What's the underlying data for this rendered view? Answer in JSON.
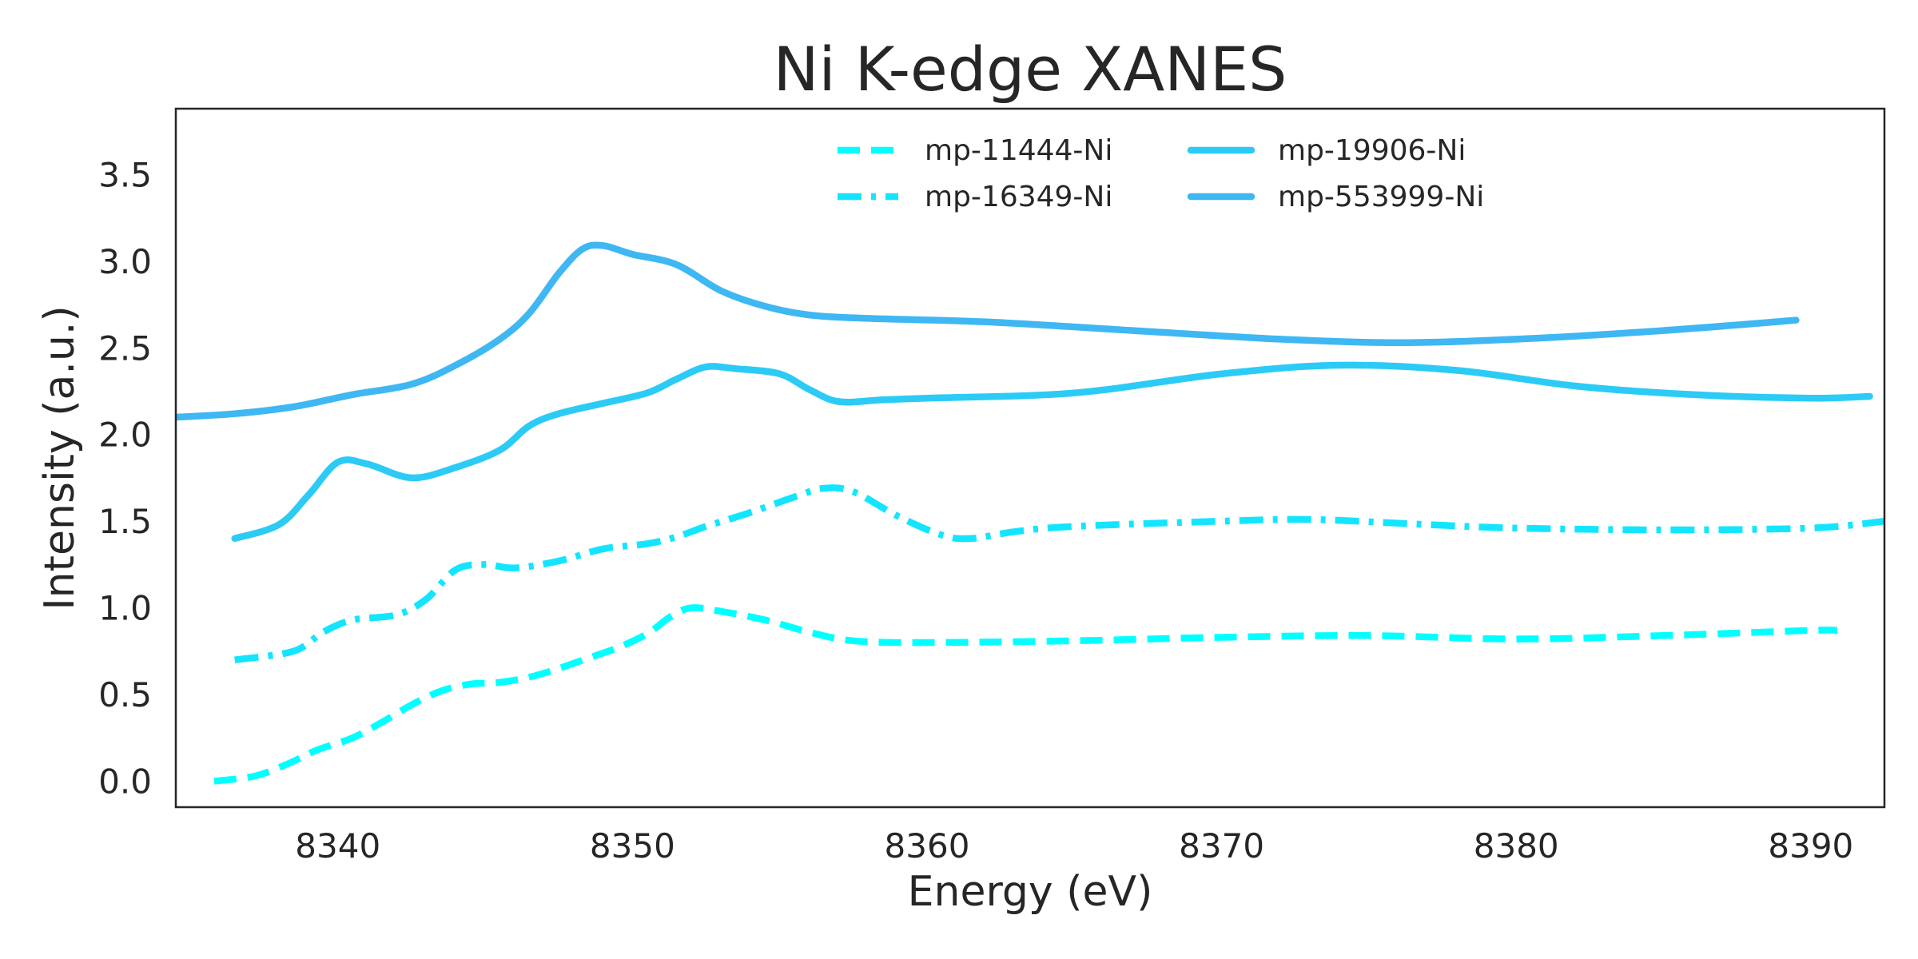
{
  "chart_data": {
    "type": "line",
    "title": "Ni K-edge XANES",
    "xlabel": "Energy (eV)",
    "ylabel": "Intensity (a.u.)",
    "xlim": [
      8334.5,
      8392.5
    ],
    "ylim": [
      -0.15,
      3.88
    ],
    "xticks": [
      "8340",
      "8350",
      "8360",
      "8370",
      "8380",
      "8390"
    ],
    "yticks": [
      "0.0",
      "0.5",
      "1.0",
      "1.5",
      "2.0",
      "2.5",
      "3.0",
      "3.5"
    ],
    "grid": false,
    "legend_position": "top-right",
    "series": [
      {
        "name": "mp-11444-Ni",
        "color": "#00ffff",
        "dash": "dashed",
        "x": [
          8335.8,
          8337.2,
          8338.3,
          8339.3,
          8340.5,
          8341.5,
          8342.5,
          8343.5,
          8344.5,
          8345.5,
          8346.5,
          8347.5,
          8348.5,
          8349.5,
          8350.5,
          8351.3,
          8352.0,
          8353.0,
          8354.5,
          8356.0,
          8357.5,
          8360.0,
          8365.0,
          8370.0,
          8375.0,
          8380.0,
          8385.0,
          8390.0,
          8390.9
        ],
        "y": [
          0.0,
          0.03,
          0.1,
          0.18,
          0.25,
          0.34,
          0.44,
          0.52,
          0.56,
          0.57,
          0.6,
          0.65,
          0.71,
          0.77,
          0.85,
          0.95,
          1.0,
          0.98,
          0.93,
          0.86,
          0.81,
          0.8,
          0.81,
          0.83,
          0.84,
          0.82,
          0.84,
          0.87,
          0.87
        ]
      },
      {
        "name": "mp-16349-Ni",
        "color": "#14e5ff",
        "dash": "dashdot",
        "x": [
          8336.5,
          8338.5,
          8339.5,
          8340.5,
          8342.0,
          8343.0,
          8344.0,
          8345.0,
          8346.0,
          8347.5,
          8349.0,
          8350.5,
          8351.5,
          8352.5,
          8354.0,
          8355.5,
          8356.5,
          8357.5,
          8359.0,
          8360.5,
          8361.5,
          8363.0,
          8365.0,
          8370.0,
          8373.0,
          8377.0,
          8380.0,
          8385.0,
          8390.0,
          8392.5
        ],
        "y": [
          0.7,
          0.75,
          0.86,
          0.93,
          0.96,
          1.05,
          1.22,
          1.25,
          1.23,
          1.27,
          1.34,
          1.37,
          1.41,
          1.47,
          1.55,
          1.64,
          1.69,
          1.67,
          1.53,
          1.42,
          1.4,
          1.44,
          1.47,
          1.5,
          1.51,
          1.48,
          1.46,
          1.45,
          1.46,
          1.5
        ]
      },
      {
        "name": "mp-19906-Ni",
        "color": "#2ccbf6",
        "dash": "solid",
        "x": [
          8336.5,
          8338.0,
          8339.0,
          8340.0,
          8341.0,
          8342.5,
          8344.0,
          8345.5,
          8346.5,
          8347.5,
          8349.0,
          8350.5,
          8351.5,
          8352.5,
          8353.5,
          8355.0,
          8356.0,
          8357.0,
          8358.5,
          8360.0,
          8365.0,
          8370.0,
          8374.0,
          8378.0,
          8382.0,
          8386.0,
          8390.0,
          8392.0
        ],
        "y": [
          1.4,
          1.48,
          1.65,
          1.84,
          1.83,
          1.75,
          1.81,
          1.91,
          2.05,
          2.12,
          2.18,
          2.24,
          2.32,
          2.39,
          2.38,
          2.35,
          2.26,
          2.19,
          2.2,
          2.21,
          2.24,
          2.35,
          2.4,
          2.37,
          2.28,
          2.23,
          2.21,
          2.22
        ]
      },
      {
        "name": "mp-553999-Ni",
        "color": "#3fb7f2",
        "dash": "solid",
        "x": [
          8334.5,
          8336.5,
          8338.5,
          8340.5,
          8342.5,
          8344.0,
          8345.5,
          8346.5,
          8347.5,
          8348.3,
          8349.0,
          8350.0,
          8351.5,
          8353.0,
          8354.5,
          8356.0,
          8358.0,
          8362.0,
          8367.0,
          8372.0,
          8376.0,
          8380.0,
          8385.0,
          8389.5
        ],
        "y": [
          2.1,
          2.12,
          2.16,
          2.23,
          2.29,
          2.4,
          2.55,
          2.7,
          2.93,
          3.07,
          3.09,
          3.04,
          2.98,
          2.83,
          2.74,
          2.69,
          2.67,
          2.65,
          2.6,
          2.55,
          2.53,
          2.55,
          2.6,
          2.66
        ]
      }
    ]
  }
}
